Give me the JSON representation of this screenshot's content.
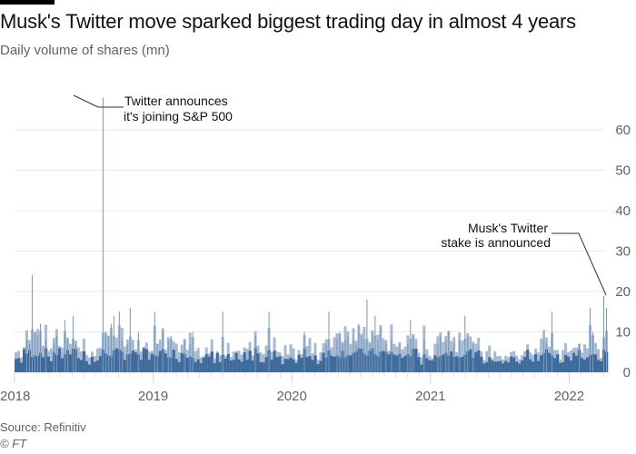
{
  "header": {
    "title": "Musk's Twitter move sparked biggest trading day in almost 4 years",
    "subtitle": "Daily volume of shares (mn)"
  },
  "footer": {
    "source": "Source: Refinitiv",
    "copyright": "© FT"
  },
  "colors": {
    "bar": "#3d6a9c",
    "bar_light": "#a6bbd3",
    "spike": "#7797bb",
    "grid": "#ebe9e6",
    "annotation_line": "#333333"
  },
  "chart_data": {
    "type": "bar",
    "title": "Musk's Twitter move sparked biggest trading day in almost 4 years",
    "subtitle": "Daily volume of shares (mn)",
    "xlabel": "",
    "ylabel": "Daily volume of shares (mn)",
    "ylim": [
      0,
      65
    ],
    "yticks": [
      0,
      10,
      20,
      30,
      40,
      50,
      60
    ],
    "xticks": [
      "2018",
      "2019",
      "2020",
      "2021",
      "2022"
    ],
    "x_range": [
      "2018-01-01",
      "2022-04-05"
    ],
    "grid": true,
    "y_axis_position": "right",
    "frequency": "weekly-sampled estimate of daily volume",
    "values": [
      4,
      5,
      3,
      6,
      8,
      7,
      24,
      10,
      9,
      12,
      6,
      8,
      5,
      4,
      7,
      9,
      6,
      5,
      13,
      8,
      6,
      14,
      7,
      5,
      4,
      6,
      4,
      3,
      5,
      3,
      4,
      5,
      68,
      10,
      9,
      12,
      14,
      6,
      15,
      8,
      5,
      7,
      16,
      6,
      5,
      10,
      4,
      6,
      6,
      4,
      5,
      15,
      7,
      6,
      11,
      5,
      8,
      9,
      6,
      5,
      4,
      6,
      8,
      5,
      7,
      10,
      4,
      5,
      3,
      4,
      5,
      4,
      6,
      3,
      5,
      4,
      15,
      4,
      6,
      3,
      4,
      5,
      4,
      3,
      5,
      4,
      6,
      3,
      9,
      5,
      4,
      3,
      5,
      15,
      4,
      6,
      5,
      4,
      3,
      5,
      4,
      6,
      4,
      3,
      5,
      4,
      10,
      5,
      6,
      4,
      5,
      3,
      4,
      6,
      7,
      15,
      5,
      6,
      8,
      10,
      7,
      8,
      9,
      6,
      8,
      7,
      12,
      9,
      8,
      18,
      7,
      10,
      14,
      8,
      11,
      6,
      7,
      5,
      8,
      6,
      5,
      7,
      4,
      5,
      7,
      13,
      9,
      6,
      4,
      3,
      8,
      5,
      4,
      3,
      5,
      7,
      9,
      6,
      8,
      10,
      6,
      7,
      5,
      8,
      6,
      14,
      9,
      6,
      7,
      5,
      6,
      4,
      3,
      4,
      5,
      3,
      4,
      3,
      4,
      3,
      4,
      3,
      4,
      5,
      4,
      3,
      4,
      5,
      6,
      4,
      3,
      5,
      4,
      6,
      8,
      7,
      6,
      15,
      4,
      5,
      3,
      4,
      6,
      5,
      4,
      6,
      5,
      7,
      4,
      5,
      4,
      16,
      10,
      5,
      4,
      3,
      19,
      16
    ],
    "annotations": [
      {
        "label": "Twitter announces it's joining S&P 500",
        "date": "2018-06",
        "value": 68
      },
      {
        "label": "Musk's Twitter stake is announced",
        "date": "2022-04-04",
        "value": 19
      }
    ]
  },
  "annotations": {
    "sp500_line1": "Twitter announces",
    "sp500_line2": "it's joining S&P 500",
    "musk_line1": "Musk's Twitter",
    "musk_line2": "stake is announced"
  },
  "axis": {
    "y": [
      "0",
      "10",
      "20",
      "30",
      "40",
      "50",
      "60"
    ],
    "x": [
      "2018",
      "2019",
      "2020",
      "2021",
      "2022"
    ]
  }
}
